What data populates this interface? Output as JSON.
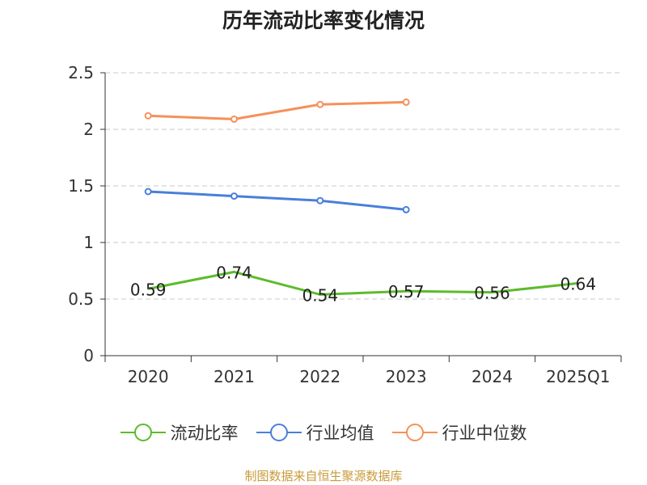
{
  "chart_data": {
    "type": "line",
    "title": "历年流动比率变化情况",
    "categories": [
      "2020",
      "2021",
      "2022",
      "2023",
      "2024",
      "2025Q1"
    ],
    "ylim": [
      0,
      2.5
    ],
    "yticks": [
      "0",
      "0.5",
      "1",
      "1.5",
      "2",
      "2.5"
    ],
    "ytick_values": [
      0,
      0.5,
      1,
      1.5,
      2,
      2.5
    ],
    "grid": true,
    "legend_position": "bottom",
    "series": [
      {
        "name": "流动比率",
        "color": "#5dbb2c",
        "values": [
          0.59,
          0.74,
          0.54,
          0.57,
          0.56,
          0.64
        ],
        "labels": [
          "0.59",
          "0.74",
          "0.54",
          "0.57",
          "0.56",
          "0.64"
        ],
        "markers": false
      },
      {
        "name": "行业均值",
        "color": "#4a7fdb",
        "values": [
          1.45,
          1.41,
          1.37,
          1.29,
          null,
          null
        ],
        "markers": true
      },
      {
        "name": "行业中位数",
        "color": "#f5915a",
        "values": [
          2.12,
          2.09,
          2.22,
          2.24,
          null,
          null
        ],
        "markers": true
      }
    ]
  },
  "source": "制图数据来自恒生聚源数据库"
}
